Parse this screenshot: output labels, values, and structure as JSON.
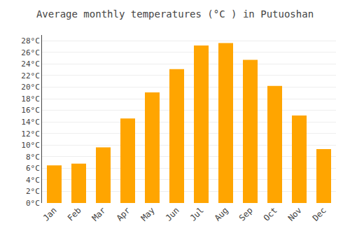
{
  "chart_data": {
    "type": "bar",
    "title": "Average monthly temperatures (°C ) in Putuoshan",
    "categories": [
      "Jan",
      "Feb",
      "Mar",
      "Apr",
      "May",
      "Jun",
      "Jul",
      "Aug",
      "Sep",
      "Oct",
      "Nov",
      "Dec"
    ],
    "values": [
      6.5,
      6.8,
      9.6,
      14.6,
      19.1,
      23.1,
      27.2,
      27.6,
      24.7,
      20.2,
      15.1,
      9.3
    ],
    "color": "#FFA500",
    "ylim": [
      0,
      29
    ],
    "yticks": [
      {
        "value": 0,
        "label": "0°C"
      },
      {
        "value": 2,
        "label": "2°C"
      },
      {
        "value": 4,
        "label": "4°C"
      },
      {
        "value": 6,
        "label": "6°C"
      },
      {
        "value": 8,
        "label": "8°C"
      },
      {
        "value": 10,
        "label": "10°C"
      },
      {
        "value": 12,
        "label": "12°C"
      },
      {
        "value": 14,
        "label": "14°C"
      },
      {
        "value": 16,
        "label": "16°C"
      },
      {
        "value": 18,
        "label": "18°C"
      },
      {
        "value": 20,
        "label": "20°C"
      },
      {
        "value": 22,
        "label": "22°C"
      },
      {
        "value": 24,
        "label": "24°C"
      },
      {
        "value": 26,
        "label": "26°C"
      },
      {
        "value": 28,
        "label": "28°C"
      }
    ],
    "grid": true
  }
}
